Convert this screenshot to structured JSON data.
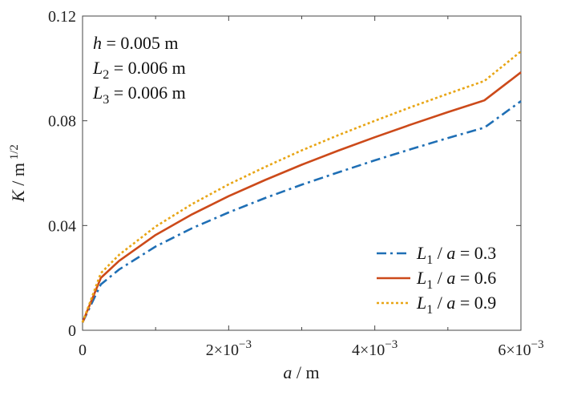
{
  "chart_data": {
    "type": "line",
    "xlabel": "a / m",
    "ylabel": "K / m 1/2",
    "xlim": [
      0,
      0.006
    ],
    "ylim": [
      0,
      0.12
    ],
    "x_ticks": [
      {
        "value": 0,
        "mant": "0",
        "exp": ""
      },
      {
        "value": 0.002,
        "mant": "2×10",
        "exp": "−3"
      },
      {
        "value": 0.004,
        "mant": "4×10",
        "exp": "−3"
      },
      {
        "value": 0.006,
        "mant": "6×10",
        "exp": "−3"
      }
    ],
    "y_ticks": [
      {
        "value": 0,
        "label": "0"
      },
      {
        "value": 0.04,
        "label": "0.04"
      },
      {
        "value": 0.08,
        "label": "0.08"
      },
      {
        "value": 0.12,
        "label": "0.12"
      }
    ],
    "grid": false,
    "legend_position": "bottom-right",
    "x": [
      0,
      0.00025,
      0.0005,
      0.001,
      0.0015,
      0.002,
      0.0025,
      0.003,
      0.0035,
      0.004,
      0.0045,
      0.005,
      0.0055,
      0.006
    ],
    "series": [
      {
        "name": "L1 / a = 0.3",
        "legend": {
          "sym": "L",
          "sub": "1",
          "rest": " / a = 0.3"
        },
        "color": "#1f6fb5",
        "dash": "12 5 3 5",
        "values": [
          0.003,
          0.0175,
          0.0232,
          0.032,
          0.039,
          0.045,
          0.0505,
          0.0556,
          0.0603,
          0.0649,
          0.0692,
          0.0734,
          0.0774,
          0.0875
        ]
      },
      {
        "name": "L1 / a = 0.6",
        "legend": {
          "sym": "L",
          "sub": "1",
          "rest": " / a = 0.6"
        },
        "color": "#cc4a1a",
        "dash": "",
        "values": [
          0.003,
          0.02,
          0.0265,
          0.0364,
          0.0443,
          0.0512,
          0.0574,
          0.0632,
          0.0686,
          0.0737,
          0.0786,
          0.0833,
          0.0878,
          0.0985
        ]
      },
      {
        "name": "L1 / a = 0.9",
        "legend": {
          "sym": "L",
          "sub": "1",
          "rest": " / a = 0.9"
        },
        "color": "#e8a515",
        "dash": "3 3",
        "values": [
          0.003,
          0.0218,
          0.0288,
          0.0396,
          0.0482,
          0.0557,
          0.0624,
          0.0687,
          0.0745,
          0.08,
          0.0853,
          0.0903,
          0.0952,
          0.1065
        ]
      }
    ],
    "annotations": [
      {
        "sym": "h",
        "sub": "",
        "rest": " = 0.005 m"
      },
      {
        "sym": "L",
        "sub": "2",
        "rest": " = 0.006 m"
      },
      {
        "sym": "L",
        "sub": "3",
        "rest": " = 0.006 m"
      }
    ]
  }
}
